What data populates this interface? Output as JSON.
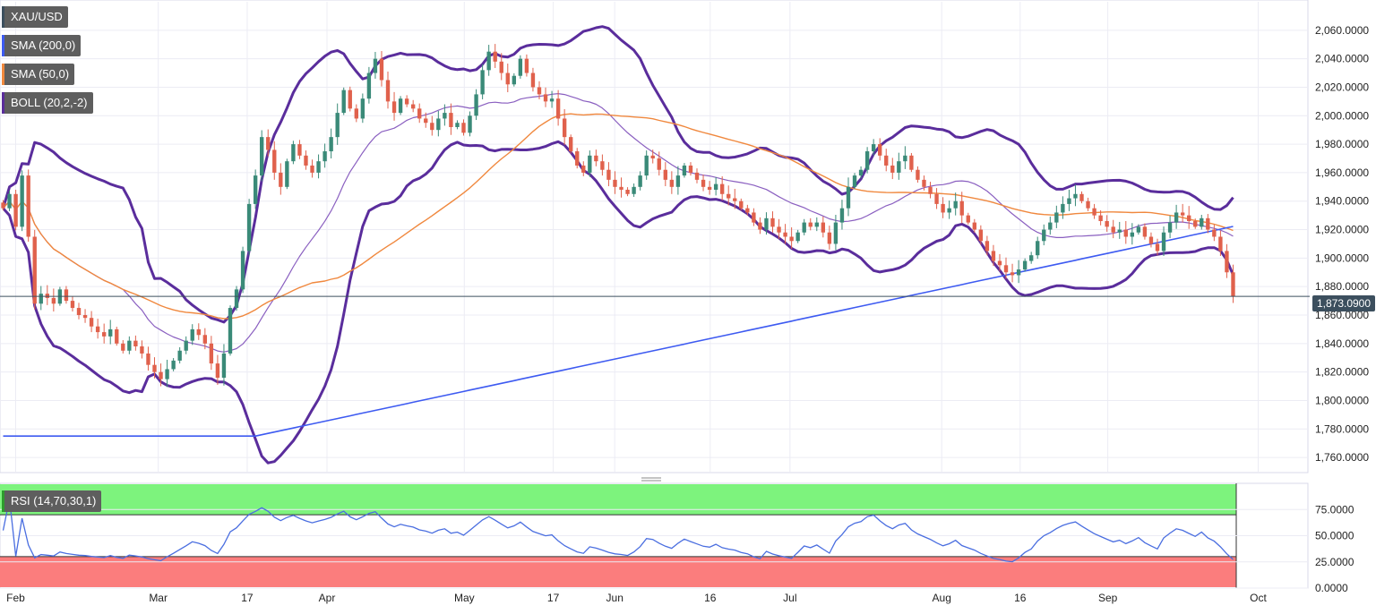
{
  "legends": {
    "symbol": "XAU/USD",
    "sma200": "SMA (200,0)",
    "sma50": "SMA (50,0)",
    "boll": "BOLL (20,2,-2)",
    "rsi": "RSI (14,70,30,1)"
  },
  "current_price_label": "1,873.0900",
  "colors": {
    "up": "#3a8a78",
    "down": "#e0614c",
    "sma200": "#3d5af1",
    "sma50": "#f0883e",
    "boll": "#5a2d9c",
    "rsi_line": "#4a6ee0",
    "overbought_zone": "#7df37d",
    "oversold_zone": "#fb7d7d",
    "price_line": "#3c4f5e"
  },
  "chart_data": [
    {
      "type": "candlestick",
      "ylim": [
        1750,
        2080
      ],
      "y_ticks": [
        "2,060.0000",
        "2,040.0000",
        "2,020.0000",
        "2,000.0000",
        "1,980.0000",
        "1,960.0000",
        "1,940.0000",
        "1,920.0000",
        "1,900.0000",
        "1,880.0000",
        "1,860.0000",
        "1,840.0000",
        "1,820.0000",
        "1,800.0000",
        "1,780.0000",
        "1,760.0000"
      ],
      "x_ticks": [
        "Feb",
        "Mar",
        "17",
        "Apr",
        "May",
        "17",
        "Jun",
        "16",
        "Jul",
        "Aug",
        "16",
        "Sep",
        "Oct"
      ],
      "last_price": 1873.09,
      "close": [
        1935,
        1945,
        1922,
        1958,
        1915,
        1868,
        1875,
        1872,
        1868,
        1878,
        1870,
        1865,
        1860,
        1858,
        1852,
        1848,
        1845,
        1850,
        1840,
        1835,
        1842,
        1838,
        1833,
        1825,
        1820,
        1815,
        1822,
        1828,
        1835,
        1842,
        1850,
        1846,
        1840,
        1826,
        1816,
        1833,
        1865,
        1878,
        1905,
        1938,
        1958,
        1985,
        1976,
        1960,
        1950,
        1968,
        1980,
        1972,
        1965,
        1960,
        1968,
        1975,
        1985,
        2002,
        2018,
        2005,
        1998,
        2012,
        2030,
        2040,
        2025,
        2010,
        2002,
        2012,
        2008,
        2005,
        1998,
        1995,
        1990,
        1998,
        2002,
        1992,
        1995,
        1988,
        2000,
        2015,
        2032,
        2045,
        2038,
        2030,
        2022,
        2028,
        2040,
        2030,
        2020,
        2015,
        2010,
        2012,
        1998,
        1985,
        1975,
        1965,
        1960,
        1972,
        1968,
        1962,
        1955,
        1950,
        1948,
        1945,
        1950,
        1958,
        1972,
        1970,
        1962,
        1955,
        1950,
        1958,
        1965,
        1960,
        1955,
        1950,
        1948,
        1952,
        1945,
        1942,
        1940,
        1935,
        1932,
        1925,
        1920,
        1928,
        1922,
        1918,
        1915,
        1912,
        1918,
        1925,
        1922,
        1925,
        1918,
        1910,
        1925,
        1935,
        1950,
        1958,
        1962,
        1975,
        1980,
        1972,
        1965,
        1960,
        1968,
        1972,
        1962,
        1955,
        1950,
        1945,
        1938,
        1932,
        1935,
        1940,
        1930,
        1925,
        1920,
        1912,
        1905,
        1898,
        1895,
        1890,
        1888,
        1892,
        1898,
        1902,
        1912,
        1920,
        1925,
        1932,
        1938,
        1942,
        1945,
        1940,
        1935,
        1930,
        1926,
        1922,
        1918,
        1920,
        1915,
        1918,
        1922,
        1915,
        1910,
        1905,
        1918,
        1925,
        1932,
        1930,
        1926,
        1922,
        1928,
        1920,
        1915,
        1905,
        1890,
        1873
      ]
    },
    {
      "type": "line",
      "name": "RSI (14,70,30,1)",
      "ylim": [
        0,
        100
      ],
      "y_ticks": [
        "75.0000",
        "50.0000",
        "25.0000",
        "0.0000"
      ],
      "overbought": 70,
      "oversold": 30
    }
  ]
}
